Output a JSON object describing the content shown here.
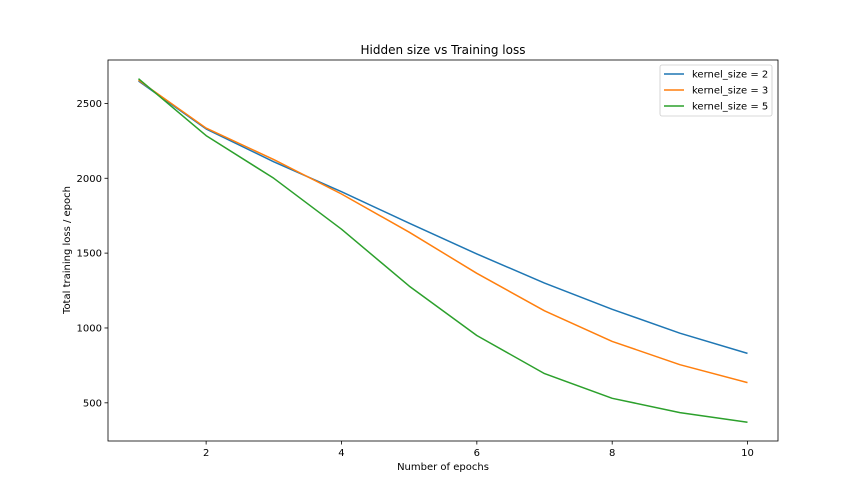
{
  "chart_data": {
    "type": "line",
    "title": "Hidden size vs Training loss",
    "xlabel": "Number of epochs",
    "ylabel": "Total training loss / epoch",
    "xlim": [
      0.55,
      10.45
    ],
    "ylim": [
      245,
      2790
    ],
    "xticks": [
      2,
      4,
      6,
      8,
      10
    ],
    "yticks": [
      500,
      1000,
      1500,
      2000,
      2500
    ],
    "grid": false,
    "legend_position": "top-right",
    "x": [
      1,
      2,
      3,
      4,
      5,
      6,
      7,
      8,
      9,
      10
    ],
    "series": [
      {
        "name": "kernel_size = 2",
        "color": "#1f77b4",
        "values": [
          2650,
          2330,
          2110,
          1910,
          1700,
          1495,
          1300,
          1125,
          965,
          830
        ]
      },
      {
        "name": "kernel_size = 3",
        "color": "#ff7f0e",
        "values": [
          2655,
          2335,
          2125,
          1895,
          1640,
          1365,
          1115,
          910,
          755,
          635
        ]
      },
      {
        "name": "kernel_size = 5",
        "color": "#2ca02c",
        "values": [
          2665,
          2285,
          2000,
          1660,
          1280,
          950,
          695,
          530,
          435,
          370
        ]
      }
    ]
  }
}
